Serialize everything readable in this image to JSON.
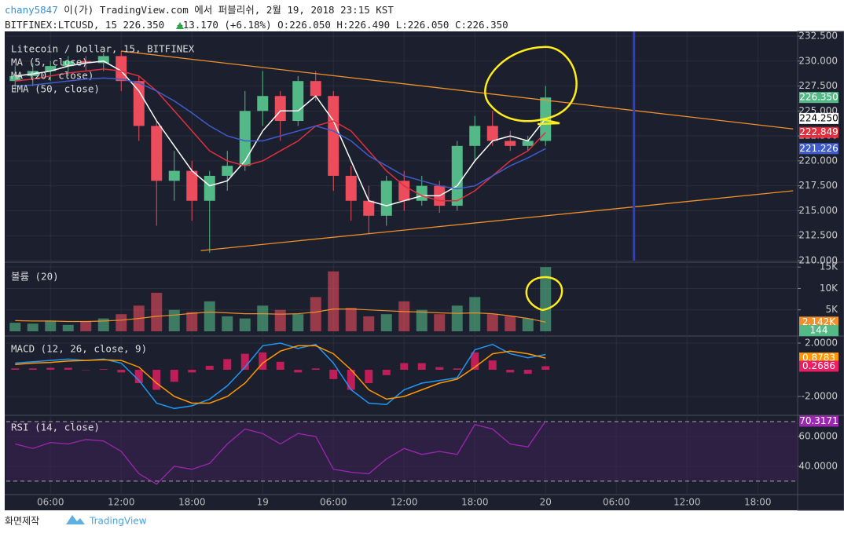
{
  "header": {
    "user": "chany5847",
    "published": "이(가) TradingView.com 에서 퍼블리쉬, 2월 19, 2018 23:15 KST",
    "symbol": "BITFINEX:LTCUSD, 15 226.350",
    "change": "+13.170 (+6.18%)",
    "open": "O:226.050",
    "high": "H:226.490",
    "low": "L:226.050",
    "close": "C:226.350"
  },
  "chart_data": [
    {
      "type": "candlestick",
      "title": "Litecoin / Dollar, 15, BITFINEX",
      "categories": [
        null,
        null,
        "06:00",
        null,
        null,
        null,
        "12:00",
        null,
        null,
        null,
        "18:00",
        null,
        null,
        null,
        "19",
        null,
        null,
        null,
        "06:00",
        null,
        null,
        null,
        "12:00",
        null,
        null,
        null,
        "18:00",
        null,
        null,
        null,
        "20",
        null,
        null,
        null,
        "06:00",
        null,
        null,
        null,
        "12:00",
        null,
        null,
        null,
        "18:00",
        null,
        null
      ],
      "open": [
        228,
        228.5,
        229,
        229.5,
        230,
        229.8,
        230.5,
        228,
        223.5,
        218,
        219,
        216,
        218.5,
        219.5,
        225,
        226.5,
        224,
        228,
        226.5,
        218.5,
        216,
        214.5,
        218,
        216,
        217.5,
        215.5,
        221.5,
        223.5,
        222,
        221.5,
        222,
        null,
        null,
        null,
        null,
        null,
        null,
        null,
        null,
        null,
        null,
        null,
        null,
        null,
        null
      ],
      "high": [
        229.5,
        229.8,
        230,
        230.5,
        230.5,
        230.8,
        231,
        228.5,
        224,
        221,
        220,
        219,
        221,
        227,
        229,
        227,
        228.5,
        229,
        227,
        219.5,
        217.5,
        218.5,
        219,
        218.5,
        218,
        222,
        224.5,
        225,
        223,
        222.5,
        227.5,
        null,
        null,
        null,
        null,
        null,
        null,
        null,
        null,
        null,
        null,
        null,
        null,
        null,
        null
      ],
      "low": [
        227,
        227.5,
        228,
        228.5,
        229,
        229,
        227,
        222,
        213.5,
        216,
        214,
        210.8,
        217,
        219,
        223.5,
        222,
        223.5,
        226,
        217,
        214,
        212.7,
        213.5,
        215,
        215.5,
        214.8,
        215,
        220,
        221.5,
        221,
        221,
        221.5,
        null,
        null,
        null,
        null,
        null,
        null,
        null,
        null,
        null,
        null,
        null,
        null,
        null,
        null
      ],
      "close": [
        228.5,
        229,
        229.5,
        230,
        229.8,
        230.5,
        228,
        223.5,
        218,
        219,
        216,
        218.5,
        219.5,
        225,
        226.5,
        224,
        228,
        226.5,
        218.5,
        216,
        214.5,
        218,
        216,
        217.5,
        215.5,
        221.5,
        223.5,
        222,
        221.5,
        222,
        226.35,
        null,
        null,
        null,
        null,
        null,
        null,
        null,
        null,
        null,
        null,
        null,
        null,
        null,
        null
      ],
      "up_color": "#53b987",
      "down_color": "#eb4d5c",
      "series": [
        {
          "name": "MA (5, close)",
          "color": "#ffffff",
          "values": [
            228.5,
            228.7,
            229,
            229.5,
            229.8,
            230,
            229,
            227,
            224,
            221.5,
            219,
            217.5,
            218,
            220,
            223,
            225,
            225,
            226.5,
            224,
            220,
            216,
            215.5,
            216,
            216.5,
            216.5,
            217.5,
            220,
            222,
            222.5,
            222,
            224.25,
            null,
            null,
            null,
            null,
            null,
            null,
            null,
            null,
            null,
            null,
            null,
            null,
            null,
            null
          ]
        },
        {
          "name": "MA (20, close)",
          "color": "#e0303f",
          "values": [
            228,
            228.2,
            228.5,
            228.8,
            229,
            229.2,
            229,
            228.5,
            227,
            225,
            223,
            221,
            220,
            219.5,
            220,
            221,
            222,
            223.5,
            224,
            223,
            221,
            219,
            217.5,
            216.5,
            216,
            216,
            217,
            218.5,
            220,
            221,
            222.849,
            null,
            null,
            null,
            null,
            null,
            null,
            null,
            null,
            null,
            null,
            null,
            null,
            null,
            null
          ]
        },
        {
          "name": "EMA (50, close)",
          "color": "#3f5ccd",
          "values": [
            227.5,
            227.6,
            227.8,
            228,
            228.2,
            228.3,
            228.2,
            227.8,
            227,
            226,
            224.8,
            223.5,
            222.5,
            222,
            222,
            222.5,
            223,
            223.5,
            223,
            222,
            220.5,
            219.5,
            218.5,
            218,
            217.5,
            217.2,
            217.5,
            218.5,
            219.5,
            220.3,
            221.226,
            null,
            null,
            null,
            null,
            null,
            null,
            null,
            null,
            null,
            null,
            null,
            null,
            null,
            null
          ]
        }
      ],
      "ylim": [
        210,
        232.5
      ],
      "yticks": [
        {
          "value": 210,
          "label": "210.000"
        },
        {
          "value": 212.5,
          "label": "212.500"
        },
        {
          "value": 215,
          "label": "215.000"
        },
        {
          "value": 217.5,
          "label": "217.500"
        },
        {
          "value": 220,
          "label": "220.000"
        },
        {
          "value": 222.5,
          "label": "222.500"
        },
        {
          "value": 225,
          "label": "225.000"
        },
        {
          "value": 227.5,
          "label": "227.500"
        },
        {
          "value": 230,
          "label": "230.000"
        },
        {
          "value": 232.5,
          "label": "232.500"
        }
      ],
      "price_labels": [
        {
          "value": 226.35,
          "label": "226.350",
          "color": "#53b987",
          "text_color": "#ffffff"
        },
        {
          "value": 224.25,
          "label": "224.250",
          "color": "#ffffff",
          "text_color": "#000000"
        },
        {
          "value": 222.849,
          "label": "222.849",
          "color": "#e0303f",
          "text_color": "#ffffff"
        },
        {
          "value": 221.226,
          "label": "221.226",
          "color": "#3f5ccd",
          "text_color": "#ffffff"
        }
      ],
      "trendlines": [
        {
          "color": "#f0902a",
          "points": [
            [
              6,
              231
            ],
            [
              44,
              223.2
            ]
          ]
        },
        {
          "color": "#f0902a",
          "points": [
            [
              10.5,
              211
            ],
            [
              44,
              217
            ]
          ]
        }
      ],
      "vline": {
        "category": 35,
        "color": "#2d3fc4"
      }
    },
    {
      "type": "volume",
      "title": "볼륨 (20)",
      "values": [
        2000,
        1800,
        2500,
        1500,
        2200,
        3000,
        4000,
        6000,
        9000,
        5000,
        4500,
        7000,
        3500,
        3000,
        6000,
        5000,
        4000,
        8000,
        14000,
        5500,
        3500,
        4000,
        7000,
        5000,
        4000,
        6000,
        8000,
        4000,
        3500,
        3000,
        15000
      ],
      "ma": {
        "color": "#f0902a",
        "values": [
          2500,
          2400,
          2400,
          2300,
          2300,
          2400,
          2600,
          3000,
          3500,
          3800,
          4200,
          4500,
          4300,
          4100,
          4100,
          4000,
          4100,
          4500,
          5200,
          5200,
          5000,
          4800,
          4600,
          4500,
          4300,
          4200,
          4300,
          4100,
          3600,
          3000,
          2142
        ]
      },
      "ylim": [
        0,
        15400
      ],
      "yticks": [
        {
          "value": 5000,
          "label": "5K"
        },
        {
          "value": 10000,
          "label": "10K"
        },
        {
          "value": 15000,
          "label": "15K"
        }
      ],
      "price_labels": [
        {
          "value": 2142,
          "label": "2.142K",
          "color": "#f0902a",
          "text_color": "#ffffff"
        },
        {
          "value": 144,
          "label": "144",
          "color": "#53b987",
          "text_color": "#ffffff"
        }
      ]
    },
    {
      "type": "macd",
      "title": "MACD (12, 26, close, 9)",
      "series": [
        {
          "color": "#2196f3",
          "values": [
            0.5,
            0.6,
            0.7,
            0.8,
            0.7,
            0.8,
            0.5,
            -0.8,
            -2.5,
            -2.9,
            -2.7,
            -2.2,
            -1.2,
            0.2,
            1.8,
            2.0,
            1.6,
            1.9,
            0.5,
            -1.5,
            -2.5,
            -2.6,
            -1.5,
            -1,
            -0.8,
            -0.6,
            1.5,
            1.9,
            1.2,
            0.9,
            1.147
          ]
        },
        {
          "color": "#ff9800",
          "values": [
            0.4,
            0.5,
            0.55,
            0.65,
            0.7,
            0.75,
            0.7,
            0.2,
            -1.0,
            -2.0,
            -2.5,
            -2.5,
            -2.0,
            -1.0,
            0.5,
            1.4,
            1.8,
            1.8,
            1.2,
            0,
            -1.5,
            -2.2,
            -2.0,
            -1.5,
            -1.0,
            -0.7,
            0.2,
            1.2,
            1.4,
            1.2,
            0.8783
          ]
        }
      ],
      "histogram": {
        "color": "#e91e63",
        "values": [
          0.1,
          0.1,
          0.15,
          0.15,
          0,
          0.05,
          -0.2,
          -1.0,
          -1.5,
          -0.9,
          -0.2,
          0.3,
          0.8,
          1.2,
          1.3,
          0.6,
          -0.2,
          0.1,
          -0.7,
          -1.5,
          -1.0,
          -0.4,
          0.5,
          0.5,
          0.2,
          0.1,
          1.3,
          0.7,
          -0.2,
          -0.3,
          0.2686
        ]
      },
      "ylim": [
        -3.35,
        2.41
      ],
      "yticks": [
        {
          "value": 2,
          "label": "2.0000"
        },
        {
          "value": -2,
          "label": "-2.0000"
        }
      ],
      "price_labels": [
        {
          "value": 0.8783,
          "label": "0.8783",
          "color": "#ff9800",
          "text_color": "#ffffff"
        },
        {
          "value": 0.2686,
          "label": "0.2686",
          "color": "#e91e63",
          "text_color": "#ffffff"
        }
      ]
    },
    {
      "type": "rsi",
      "title": "RSI (14, close)",
      "series": [
        {
          "color": "#9c27b0",
          "values": [
            55,
            52,
            56,
            55,
            58,
            57,
            50,
            35,
            28,
            40,
            38,
            42,
            55,
            65,
            62,
            55,
            62,
            60,
            38,
            36,
            35,
            45,
            52,
            48,
            50,
            48,
            68,
            65,
            55,
            53,
            70.3171
          ]
        }
      ],
      "band": [
        30,
        70
      ],
      "band_color": "#3b2150",
      "ylim": [
        21,
        73.7
      ],
      "yticks": [
        {
          "value": 60,
          "label": "60.0000"
        },
        {
          "value": 40,
          "label": "40.0000"
        }
      ],
      "price_labels": [
        {
          "value": 70.3171,
          "label": "70.3171",
          "color": "#9c27b0",
          "text_color": "#ffffff"
        }
      ]
    }
  ],
  "footer": {
    "caption": "화면제작",
    "brand": "TradingView"
  }
}
